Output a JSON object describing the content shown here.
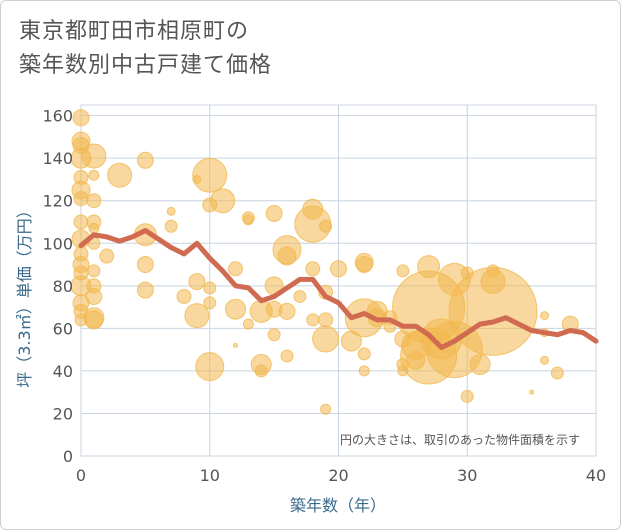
{
  "title_line1": "東京都町田市相原町の",
  "title_line2": "築年数別中古戸建て価格",
  "chart_data": {
    "type": "scatter",
    "xlabel": "築年数（年）",
    "ylabel": "坪（3.3㎡）単価（万円）",
    "xlim": [
      0,
      40
    ],
    "ylim": [
      0,
      165
    ],
    "xticks": [
      0,
      10,
      20,
      30,
      40
    ],
    "yticks": [
      0,
      20,
      40,
      60,
      80,
      100,
      120,
      140,
      160
    ],
    "grid": true,
    "note": "円の大きさは、取引のあった物件面積を示す",
    "colors": {
      "bubble": "#f2b84f",
      "line": "#d06a50",
      "grid": "#c8d4e0",
      "axis_text": "#555555"
    },
    "trend_line": {
      "x": [
        0,
        1,
        2,
        3,
        4,
        5,
        6,
        7,
        8,
        9,
        10,
        11,
        12,
        13,
        14,
        15,
        16,
        17,
        18,
        19,
        20,
        21,
        22,
        23,
        24,
        25,
        26,
        27,
        28,
        29,
        30,
        31,
        32,
        33,
        34,
        35,
        36,
        37,
        38,
        39,
        40
      ],
      "y": [
        99,
        104,
        103,
        101,
        103,
        106,
        102,
        98,
        95,
        100,
        93,
        87,
        80,
        79,
        73,
        75,
        79,
        83,
        83,
        75,
        72,
        65,
        67,
        64,
        64,
        61,
        61,
        57,
        51,
        54,
        58,
        62,
        63,
        65,
        62,
        59,
        58,
        57,
        59,
        58,
        54
      ]
    },
    "bubbles": [
      {
        "x": 0,
        "y": 159,
        "r": 8
      },
      {
        "x": 0,
        "y": 148,
        "r": 9
      },
      {
        "x": 0,
        "y": 146,
        "r": 8
      },
      {
        "x": 0,
        "y": 140,
        "r": 10
      },
      {
        "x": 0,
        "y": 131,
        "r": 7
      },
      {
        "x": 0,
        "y": 125,
        "r": 9
      },
      {
        "x": 0,
        "y": 121,
        "r": 7
      },
      {
        "x": 0,
        "y": 110,
        "r": 7
      },
      {
        "x": 0,
        "y": 102,
        "r": 9
      },
      {
        "x": 0,
        "y": 95,
        "r": 7
      },
      {
        "x": 0,
        "y": 90,
        "r": 8
      },
      {
        "x": 0,
        "y": 86,
        "r": 7
      },
      {
        "x": 0,
        "y": 80,
        "r": 10
      },
      {
        "x": 0,
        "y": 72,
        "r": 8
      },
      {
        "x": 0,
        "y": 68,
        "r": 7
      },
      {
        "x": 0,
        "y": 64,
        "r": 6
      },
      {
        "x": 1,
        "y": 141,
        "r": 12
      },
      {
        "x": 1,
        "y": 132,
        "r": 5
      },
      {
        "x": 1,
        "y": 120,
        "r": 7
      },
      {
        "x": 1,
        "y": 110,
        "r": 7
      },
      {
        "x": 1,
        "y": 107,
        "r": 5
      },
      {
        "x": 1,
        "y": 100,
        "r": 6
      },
      {
        "x": 1,
        "y": 87,
        "r": 6
      },
      {
        "x": 1,
        "y": 80,
        "r": 7
      },
      {
        "x": 1,
        "y": 75,
        "r": 8
      },
      {
        "x": 1,
        "y": 65,
        "r": 10
      },
      {
        "x": 1,
        "y": 64,
        "r": 9
      },
      {
        "x": 2,
        "y": 94,
        "r": 7
      },
      {
        "x": 3,
        "y": 132,
        "r": 12
      },
      {
        "x": 5,
        "y": 139,
        "r": 8
      },
      {
        "x": 5,
        "y": 104,
        "r": 11
      },
      {
        "x": 5,
        "y": 90,
        "r": 8
      },
      {
        "x": 5,
        "y": 78,
        "r": 8
      },
      {
        "x": 7,
        "y": 115,
        "r": 4
      },
      {
        "x": 7,
        "y": 108,
        "r": 6
      },
      {
        "x": 8,
        "y": 75,
        "r": 7
      },
      {
        "x": 9,
        "y": 130,
        "r": 4
      },
      {
        "x": 9,
        "y": 82,
        "r": 8
      },
      {
        "x": 9,
        "y": 66,
        "r": 12
      },
      {
        "x": 10,
        "y": 132,
        "r": 17
      },
      {
        "x": 10,
        "y": 118,
        "r": 7
      },
      {
        "x": 10,
        "y": 79,
        "r": 6
      },
      {
        "x": 10,
        "y": 72,
        "r": 6
      },
      {
        "x": 10,
        "y": 42,
        "r": 14
      },
      {
        "x": 11,
        "y": 120,
        "r": 12
      },
      {
        "x": 12,
        "y": 88,
        "r": 7
      },
      {
        "x": 12,
        "y": 69,
        "r": 10
      },
      {
        "x": 12,
        "y": 52,
        "r": 2
      },
      {
        "x": 13,
        "y": 112,
        "r": 6
      },
      {
        "x": 13,
        "y": 111,
        "r": 5
      },
      {
        "x": 13,
        "y": 62,
        "r": 5
      },
      {
        "x": 14,
        "y": 68,
        "r": 11
      },
      {
        "x": 14,
        "y": 43,
        "r": 10
      },
      {
        "x": 14,
        "y": 40,
        "r": 6
      },
      {
        "x": 15,
        "y": 114,
        "r": 8
      },
      {
        "x": 15,
        "y": 80,
        "r": 9
      },
      {
        "x": 15,
        "y": 69,
        "r": 8
      },
      {
        "x": 15,
        "y": 57,
        "r": 6
      },
      {
        "x": 16,
        "y": 97,
        "r": 14
      },
      {
        "x": 16,
        "y": 94,
        "r": 9
      },
      {
        "x": 16,
        "y": 68,
        "r": 8
      },
      {
        "x": 16,
        "y": 47,
        "r": 6
      },
      {
        "x": 17,
        "y": 75,
        "r": 6
      },
      {
        "x": 18,
        "y": 116,
        "r": 10
      },
      {
        "x": 18,
        "y": 109,
        "r": 18
      },
      {
        "x": 18,
        "y": 88,
        "r": 7
      },
      {
        "x": 18,
        "y": 64,
        "r": 6
      },
      {
        "x": 19,
        "y": 108,
        "r": 6
      },
      {
        "x": 19,
        "y": 77,
        "r": 7
      },
      {
        "x": 19,
        "y": 64,
        "r": 7
      },
      {
        "x": 19,
        "y": 55,
        "r": 13
      },
      {
        "x": 19,
        "y": 22,
        "r": 5
      },
      {
        "x": 20,
        "y": 88,
        "r": 8
      },
      {
        "x": 21,
        "y": 54,
        "r": 10
      },
      {
        "x": 22,
        "y": 91,
        "r": 9
      },
      {
        "x": 22,
        "y": 90,
        "r": 8
      },
      {
        "x": 22,
        "y": 65,
        "r": 19
      },
      {
        "x": 22,
        "y": 48,
        "r": 6
      },
      {
        "x": 22,
        "y": 40,
        "r": 5
      },
      {
        "x": 23,
        "y": 68,
        "r": 10
      },
      {
        "x": 23,
        "y": 65,
        "r": 9
      },
      {
        "x": 24,
        "y": 65,
        "r": 7
      },
      {
        "x": 24,
        "y": 61,
        "r": 6
      },
      {
        "x": 25,
        "y": 87,
        "r": 6
      },
      {
        "x": 25,
        "y": 55,
        "r": 8
      },
      {
        "x": 25,
        "y": 43,
        "r": 6
      },
      {
        "x": 25,
        "y": 40,
        "r": 5
      },
      {
        "x": 26,
        "y": 52,
        "r": 14
      },
      {
        "x": 26,
        "y": 45,
        "r": 9
      },
      {
        "x": 27,
        "y": 89,
        "r": 11
      },
      {
        "x": 27,
        "y": 70,
        "r": 36
      },
      {
        "x": 27,
        "y": 47,
        "r": 28
      },
      {
        "x": 28,
        "y": 55,
        "r": 20
      },
      {
        "x": 29,
        "y": 83,
        "r": 16
      },
      {
        "x": 29,
        "y": 50,
        "r": 28
      },
      {
        "x": 30,
        "y": 86,
        "r": 6
      },
      {
        "x": 30,
        "y": 28,
        "r": 6
      },
      {
        "x": 31,
        "y": 43,
        "r": 10
      },
      {
        "x": 32,
        "y": 87,
        "r": 6
      },
      {
        "x": 32,
        "y": 68,
        "r": 44
      },
      {
        "x": 32,
        "y": 82,
        "r": 12
      },
      {
        "x": 36,
        "y": 66,
        "r": 4
      },
      {
        "x": 36,
        "y": 58,
        "r": 4
      },
      {
        "x": 36,
        "y": 45,
        "r": 4
      },
      {
        "x": 37,
        "y": 39,
        "r": 6
      },
      {
        "x": 35,
        "y": 30,
        "r": 2
      },
      {
        "x": 38,
        "y": 62,
        "r": 8
      }
    ]
  }
}
